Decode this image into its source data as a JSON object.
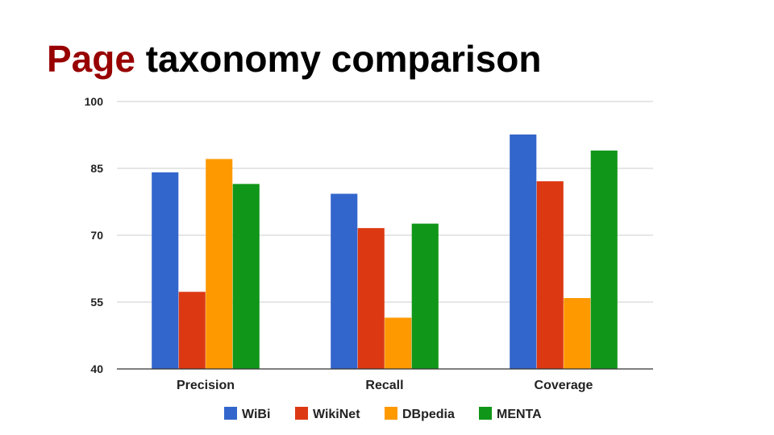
{
  "slide": {
    "title_accent": "Page",
    "title_rest": "taxonomy comparison"
  },
  "chart_data": {
    "type": "bar",
    "title": "",
    "xlabel": "",
    "ylabel": "",
    "ylim": [
      40,
      100
    ],
    "yticks": [
      40,
      55,
      70,
      85,
      100
    ],
    "grid": true,
    "legend_position": "bottom",
    "categories": [
      "Precision",
      "Recall",
      "Coverage"
    ],
    "series": [
      {
        "name": "WiBi",
        "color": "#3366cc",
        "values": [
          84.1,
          79.3,
          92.6
        ]
      },
      {
        "name": "WikiNet",
        "color": "#dc3912",
        "values": [
          57.3,
          71.6,
          82.1
        ]
      },
      {
        "name": "DBpedia",
        "color": "#ff9900",
        "values": [
          87.1,
          51.5,
          55.9
        ]
      },
      {
        "name": "MENTA",
        "color": "#109618",
        "values": [
          81.5,
          72.6,
          89.0
        ]
      }
    ]
  }
}
